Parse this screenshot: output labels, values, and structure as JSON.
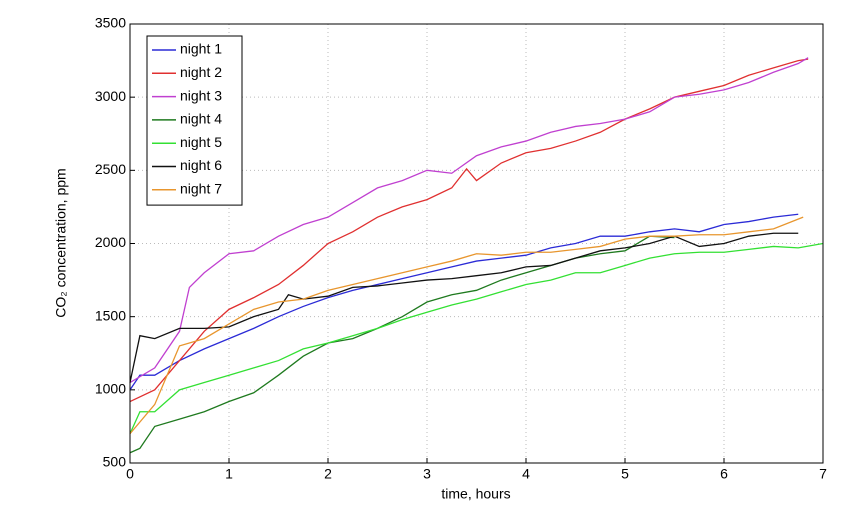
{
  "chart_data": {
    "type": "line",
    "xlabel": "time, hours",
    "ylabel": "CO₂ concentration, ppm",
    "xlim": [
      0,
      7
    ],
    "xticks": [
      0,
      1,
      2,
      3,
      4,
      5,
      6,
      7
    ],
    "ylim": [
      500,
      3500
    ],
    "yticks": [
      500,
      1000,
      1500,
      2000,
      2500,
      3000,
      3500
    ],
    "grid": true,
    "legend": "upper left",
    "series": [
      {
        "name": "night 1",
        "color": "#2b2bd6",
        "x": [
          0,
          0.1,
          0.25,
          0.5,
          0.75,
          1,
          1.25,
          1.5,
          1.75,
          2,
          2.25,
          2.5,
          2.75,
          3,
          3.25,
          3.5,
          3.75,
          4,
          4.25,
          4.5,
          4.75,
          5,
          5.25,
          5.5,
          5.75,
          6,
          6.25,
          6.5,
          6.75
        ],
        "values": [
          1000,
          1100,
          1100,
          1200,
          1280,
          1350,
          1420,
          1500,
          1570,
          1630,
          1680,
          1720,
          1760,
          1800,
          1840,
          1880,
          1900,
          1920,
          1970,
          2000,
          2050,
          2050,
          2080,
          2100,
          2080,
          2130,
          2150,
          2180,
          2200
        ]
      },
      {
        "name": "night 2",
        "color": "#e03030",
        "x": [
          0,
          0.25,
          0.5,
          0.75,
          1,
          1.25,
          1.5,
          1.75,
          2,
          2.25,
          2.5,
          2.75,
          3,
          3.25,
          3.4,
          3.5,
          3.75,
          4,
          4.25,
          4.5,
          4.75,
          5,
          5.25,
          5.5,
          5.75,
          6,
          6.25,
          6.5,
          6.75,
          6.85
        ],
        "values": [
          920,
          1000,
          1200,
          1400,
          1550,
          1630,
          1720,
          1850,
          2000,
          2080,
          2180,
          2250,
          2300,
          2380,
          2510,
          2430,
          2550,
          2620,
          2650,
          2700,
          2760,
          2850,
          2920,
          3000,
          3040,
          3080,
          3150,
          3200,
          3250,
          3260
        ]
      },
      {
        "name": "night 3",
        "color": "#c040d0",
        "x": [
          0,
          0.25,
          0.5,
          0.6,
          0.75,
          1,
          1.25,
          1.5,
          1.75,
          2,
          2.25,
          2.5,
          2.75,
          3,
          3.25,
          3.5,
          3.75,
          4,
          4.25,
          4.5,
          4.75,
          5,
          5.25,
          5.5,
          5.75,
          6,
          6.25,
          6.5,
          6.75,
          6.85
        ],
        "values": [
          1050,
          1150,
          1400,
          1700,
          1800,
          1930,
          1950,
          2050,
          2130,
          2180,
          2280,
          2380,
          2430,
          2500,
          2480,
          2600,
          2660,
          2700,
          2760,
          2800,
          2820,
          2850,
          2900,
          3000,
          3020,
          3050,
          3100,
          3170,
          3230,
          3270
        ]
      },
      {
        "name": "night 4",
        "color": "#1f7a1f",
        "x": [
          0,
          0.1,
          0.25,
          0.5,
          0.75,
          1,
          1.25,
          1.5,
          1.75,
          2,
          2.25,
          2.5,
          2.75,
          3,
          3.25,
          3.5,
          3.75,
          4,
          4.25,
          4.5,
          4.75,
          5,
          5.25,
          5.5
        ],
        "values": [
          570,
          600,
          750,
          800,
          850,
          920,
          980,
          1100,
          1230,
          1320,
          1350,
          1420,
          1500,
          1600,
          1650,
          1680,
          1750,
          1800,
          1850,
          1900,
          1930,
          1950,
          2050,
          2040
        ]
      },
      {
        "name": "night 5",
        "color": "#33e033",
        "x": [
          0,
          0.1,
          0.25,
          0.5,
          0.75,
          1,
          1.25,
          1.5,
          1.75,
          2,
          2.25,
          2.5,
          2.75,
          3,
          3.25,
          3.5,
          3.75,
          4,
          4.25,
          4.5,
          4.75,
          5,
          5.25,
          5.5,
          5.75,
          6,
          6.25,
          6.5,
          6.75,
          7
        ],
        "values": [
          700,
          850,
          850,
          1000,
          1050,
          1100,
          1150,
          1200,
          1280,
          1320,
          1370,
          1420,
          1480,
          1530,
          1580,
          1620,
          1670,
          1720,
          1750,
          1800,
          1800,
          1850,
          1900,
          1930,
          1940,
          1940,
          1960,
          1980,
          1970,
          2000
        ]
      },
      {
        "name": "night 6",
        "color": "#111111",
        "x": [
          0,
          0.1,
          0.25,
          0.5,
          0.75,
          1,
          1.25,
          1.5,
          1.6,
          1.75,
          2,
          2.25,
          2.5,
          2.75,
          3,
          3.25,
          3.5,
          3.75,
          4,
          4.25,
          4.5,
          4.75,
          5,
          5.25,
          5.5,
          5.75,
          6,
          6.25,
          6.5,
          6.75
        ],
        "values": [
          1050,
          1370,
          1350,
          1420,
          1420,
          1430,
          1500,
          1550,
          1650,
          1620,
          1640,
          1700,
          1710,
          1730,
          1750,
          1760,
          1780,
          1800,
          1840,
          1850,
          1900,
          1950,
          1970,
          2000,
          2050,
          1980,
          2000,
          2050,
          2070,
          2070
        ]
      },
      {
        "name": "night 7",
        "color": "#e8962e",
        "x": [
          0,
          0.25,
          0.5,
          0.75,
          1,
          1.25,
          1.5,
          1.75,
          2,
          2.25,
          2.5,
          2.75,
          3,
          3.25,
          3.5,
          3.75,
          4,
          4.25,
          4.5,
          4.75,
          5,
          5.25,
          5.5,
          5.75,
          6,
          6.25,
          6.5,
          6.8
        ],
        "values": [
          700,
          900,
          1300,
          1350,
          1450,
          1550,
          1600,
          1620,
          1680,
          1720,
          1760,
          1800,
          1840,
          1880,
          1930,
          1920,
          1940,
          1940,
          1960,
          1980,
          2030,
          2050,
          2050,
          2060,
          2060,
          2080,
          2100,
          2180
        ]
      }
    ]
  }
}
